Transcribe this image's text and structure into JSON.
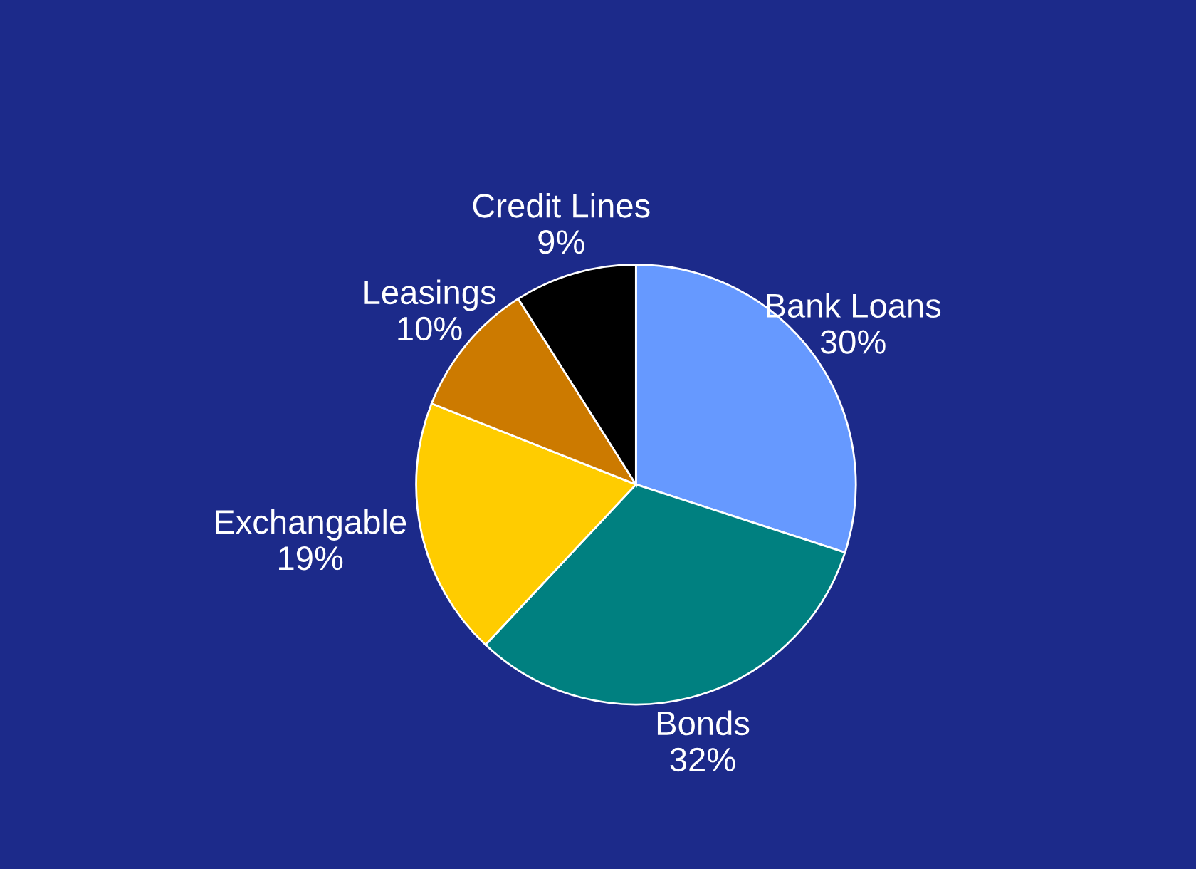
{
  "chart_data": {
    "type": "pie",
    "categories": [
      "Bank Loans",
      "Bonds",
      "Exchangable",
      "Leasings",
      "Credit Lines"
    ],
    "values": [
      30,
      32,
      19,
      10,
      9
    ],
    "value_labels": [
      "30%",
      "32%",
      "19%",
      "10%",
      "9%"
    ],
    "colors": [
      "#6699ff",
      "#008080",
      "#ffcc00",
      "#cc7a00",
      "#000000"
    ]
  }
}
